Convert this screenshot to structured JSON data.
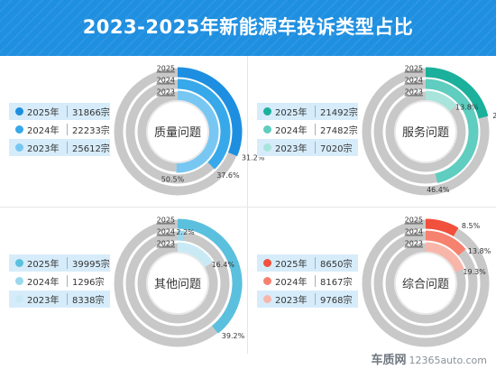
{
  "title": "2023-2025年新能源车投诉类型占比",
  "footer": {
    "brand": "车质网",
    "site": "12365auto.com"
  },
  "chart_data": [
    {
      "type": "pie",
      "category": "质量问题",
      "years": [
        "2025年",
        "2024年",
        "2023年"
      ],
      "ring_labels": [
        "2025",
        "2024",
        "2023"
      ],
      "values": [
        "31866宗",
        "22233宗",
        "25612宗"
      ],
      "shares": [
        31.2,
        37.6,
        50.5
      ],
      "share_labels": [
        "31.2%",
        "37.6%",
        "50.5%"
      ],
      "colors": [
        "#1e8fe0",
        "#37a9ea",
        "#78c7f3"
      ]
    },
    {
      "type": "pie",
      "category": "服务问题",
      "years": [
        "2025年",
        "2024年",
        "2023年"
      ],
      "ring_labels": [
        "2025",
        "2024",
        "2023"
      ],
      "values": [
        "21492宗",
        "27482宗",
        "7020宗"
      ],
      "shares": [
        21.1,
        46.4,
        13.8
      ],
      "share_labels": [
        "21.1%",
        "46.4%",
        "13.8%"
      ],
      "colors": [
        "#1ab09c",
        "#5fcdbf",
        "#a9e4dc"
      ]
    },
    {
      "type": "pie",
      "category": "其他问题",
      "years": [
        "2025年",
        "2024年",
        "2023年"
      ],
      "ring_labels": [
        "2025",
        "2024",
        "2023"
      ],
      "values": [
        "39995宗",
        "1296宗",
        "8338宗"
      ],
      "shares": [
        39.2,
        2.2,
        16.4
      ],
      "share_labels": [
        "39.2%",
        "2.2%",
        "16.4%"
      ],
      "colors": [
        "#5bc0de",
        "#9bd8ec",
        "#c9eaf5"
      ]
    },
    {
      "type": "pie",
      "category": "综合问题",
      "years": [
        "2025年",
        "2024年",
        "2023年"
      ],
      "ring_labels": [
        "2025",
        "2024",
        "2023"
      ],
      "values": [
        "8650宗",
        "8167宗",
        "9768宗"
      ],
      "shares": [
        8.5,
        13.8,
        19.3
      ],
      "share_labels": [
        "8.5%",
        "13.8%",
        "19.3%"
      ],
      "colors": [
        "#f0503c",
        "#f6816e",
        "#f8b6ab"
      ]
    }
  ]
}
